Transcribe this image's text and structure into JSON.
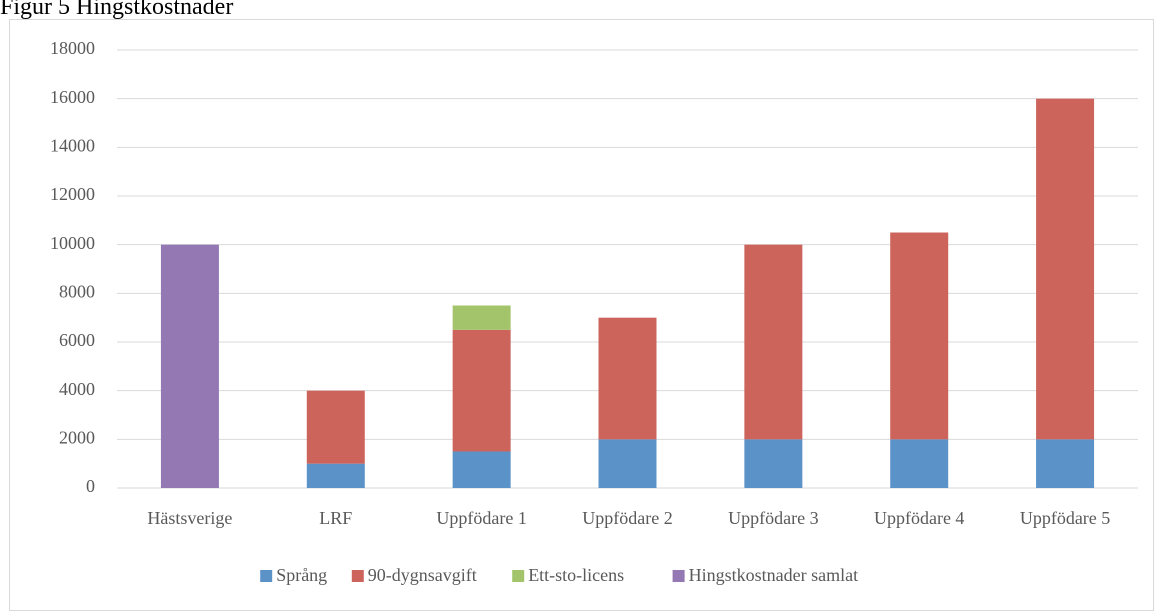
{
  "chart_data": {
    "type": "stacked_bar",
    "title": "Figur 5 Hingstkostnader",
    "categories": [
      "Hästsverige",
      "LRF",
      "Uppfödare 1",
      "Uppfödare 2",
      "Uppfödare 3",
      "Uppfödare 4",
      "Uppfödare 5"
    ],
    "series": [
      {
        "name": "Språng",
        "color": "#5b93c9",
        "values": [
          0,
          1000,
          1500,
          2000,
          2000,
          2000,
          2000
        ]
      },
      {
        "name": "90-dygnsavgift",
        "color": "#cd645c",
        "values": [
          0,
          3000,
          5000,
          5000,
          8000,
          8500,
          14000
        ]
      },
      {
        "name": "Ett-sto-licens",
        "color": "#a3c46a",
        "values": [
          0,
          0,
          1000,
          0,
          0,
          0,
          0
        ]
      },
      {
        "name": "Hingstkostnader samlat",
        "color": "#9378b3",
        "values": [
          10000,
          0,
          0,
          0,
          0,
          0,
          0
        ]
      }
    ],
    "ylim": [
      0,
      18000
    ],
    "yticks": [
      0,
      2000,
      4000,
      6000,
      8000,
      10000,
      12000,
      14000,
      16000,
      18000
    ],
    "grid": true,
    "legend": "bottom"
  }
}
